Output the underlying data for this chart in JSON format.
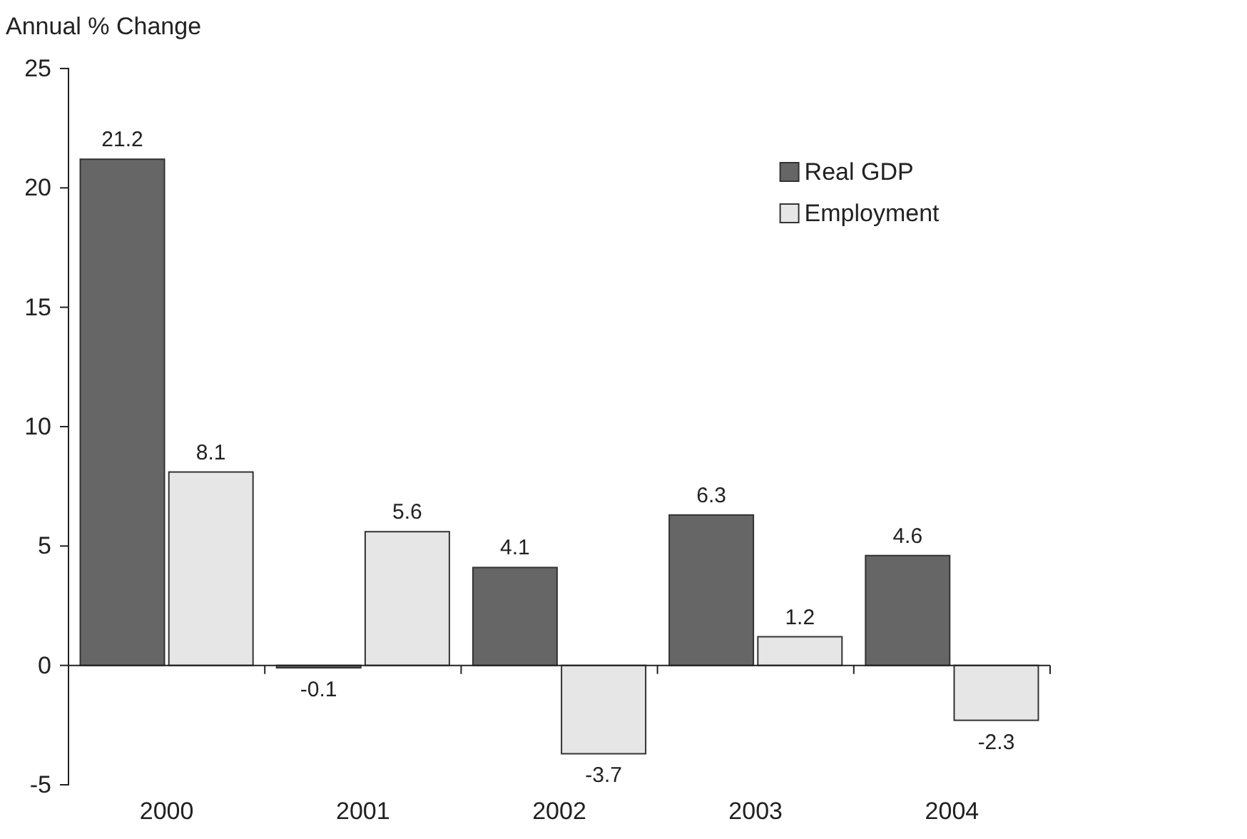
{
  "chart_data": {
    "type": "bar",
    "ylabel": "Annual % Change",
    "categories": [
      "2000",
      "2001",
      "2002",
      "2003",
      "2004"
    ],
    "series": [
      {
        "name": "Real GDP",
        "color": "#666666",
        "values": [
          21.2,
          -0.1,
          4.1,
          6.3,
          4.6
        ]
      },
      {
        "name": "Employment",
        "color": "#e6e6e6",
        "values": [
          8.1,
          5.6,
          -3.7,
          1.2,
          -2.3
        ]
      }
    ],
    "ylim": [
      -5,
      25
    ],
    "yticks": [
      -5,
      0,
      5,
      10,
      15,
      20,
      25
    ],
    "data_labels": true,
    "legend": "top right"
  }
}
